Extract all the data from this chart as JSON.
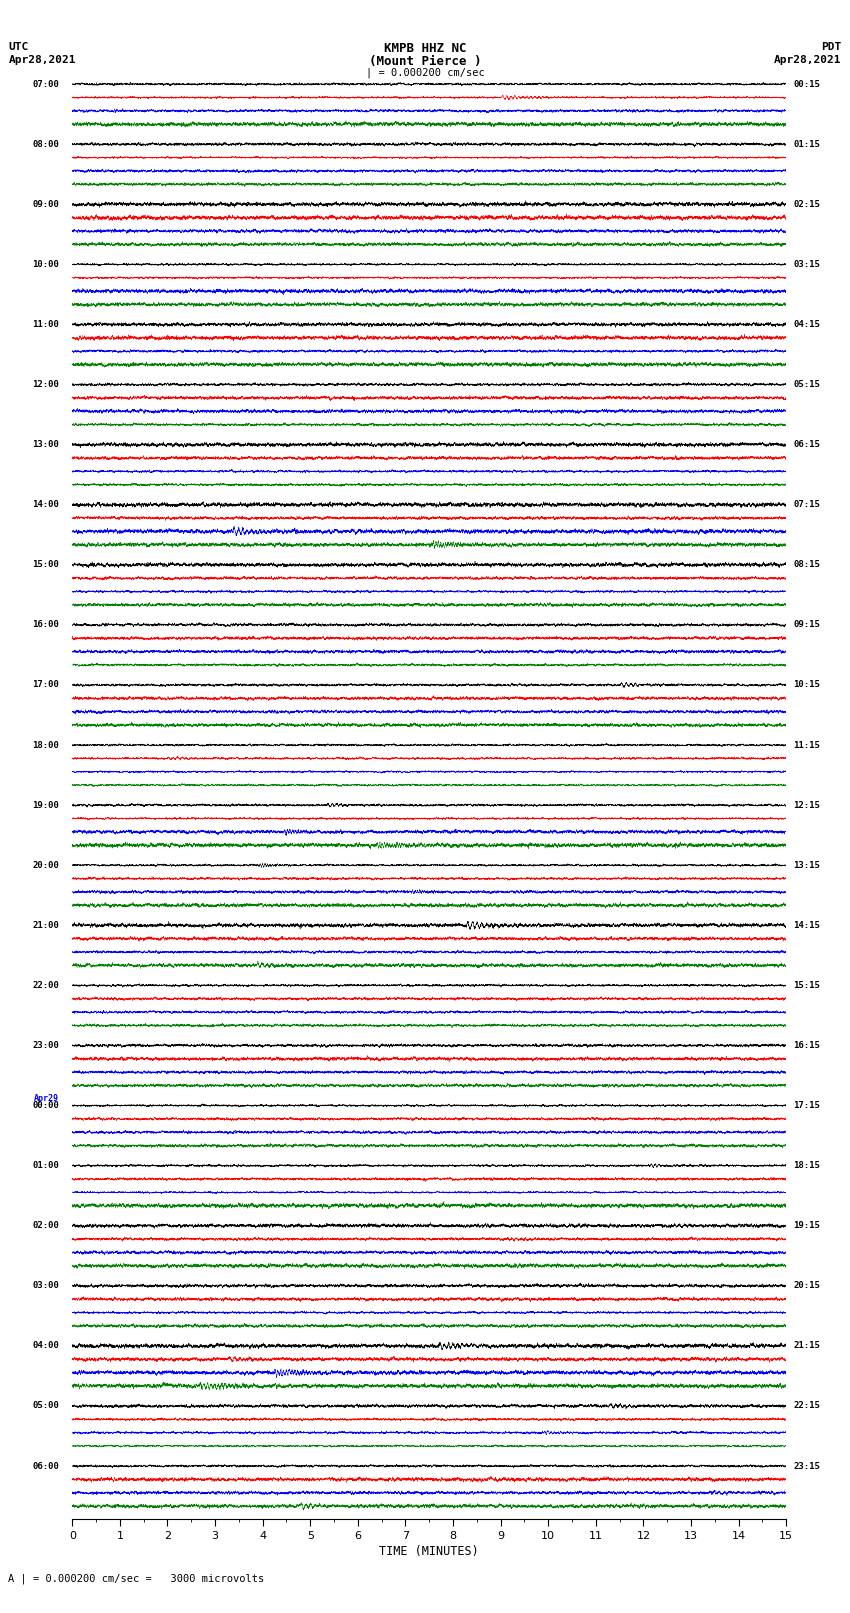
{
  "title_line1": "KMPB HHZ NC",
  "title_line2": "(Mount Pierce )",
  "scale_bar": "| = 0.000200 cm/sec",
  "scale_label": "A | = 0.000200 cm/sec =   3000 microvolts",
  "utc_label": "UTC",
  "utc_date": "Apr28,2021",
  "pdt_label": "PDT",
  "pdt_date": "Apr28,2021",
  "xlabel": "TIME (MINUTES)",
  "left_times": [
    "07:00",
    "08:00",
    "09:00",
    "10:00",
    "11:00",
    "12:00",
    "13:00",
    "14:00",
    "15:00",
    "16:00",
    "17:00",
    "18:00",
    "19:00",
    "20:00",
    "21:00",
    "22:00",
    "23:00",
    "00:00",
    "01:00",
    "02:00",
    "03:00",
    "04:00",
    "05:00",
    "06:00"
  ],
  "right_times": [
    "00:15",
    "01:15",
    "02:15",
    "03:15",
    "04:15",
    "05:15",
    "06:15",
    "07:15",
    "08:15",
    "09:15",
    "10:15",
    "11:15",
    "12:15",
    "13:15",
    "14:15",
    "15:15",
    "16:15",
    "17:15",
    "18:15",
    "19:15",
    "20:15",
    "21:15",
    "22:15",
    "23:15"
  ],
  "apr29_row": 17,
  "colors": [
    "black",
    "red",
    "blue",
    "green"
  ],
  "n_rows": 24,
  "traces_per_row": 4,
  "duration_minutes": 15,
  "samples_per_trace": 9000,
  "fig_width": 8.5,
  "fig_height": 16.13,
  "bg_color": "white",
  "xmin": 0,
  "xmax": 15
}
